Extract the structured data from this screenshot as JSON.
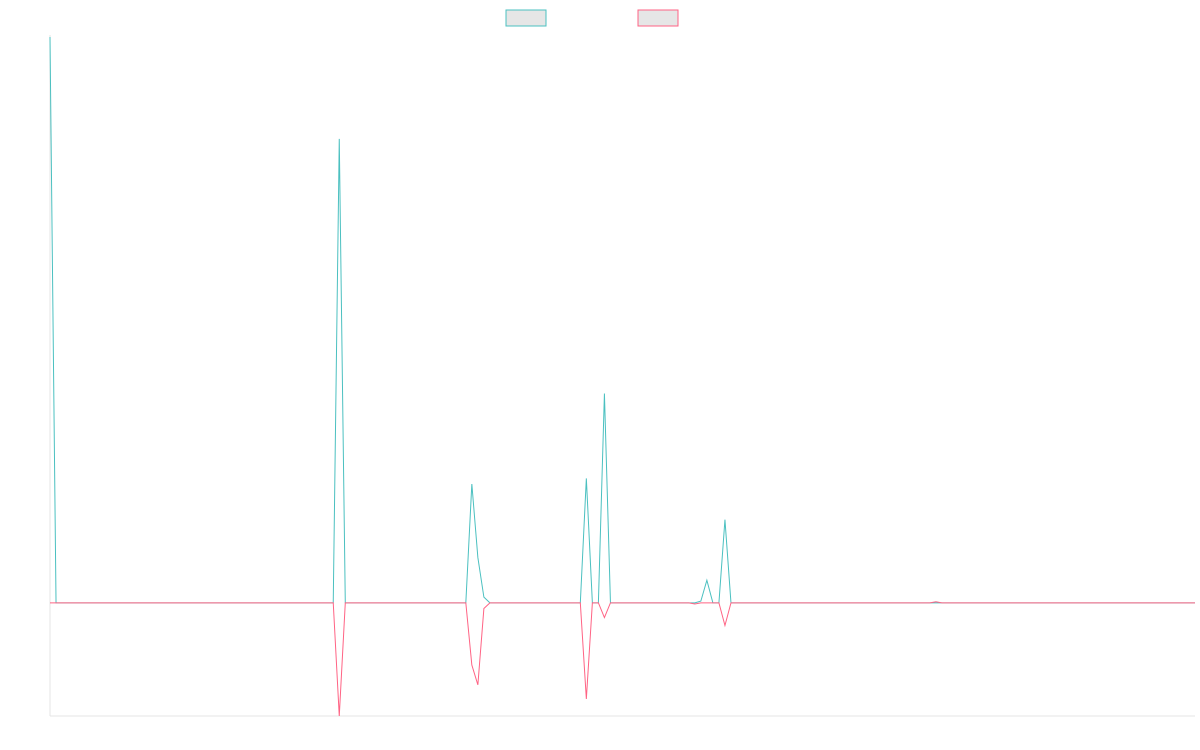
{
  "chart_data": {
    "type": "line",
    "title": "",
    "xlabel": "",
    "ylabel": "",
    "x": [
      0,
      1,
      2,
      3,
      4,
      5,
      6,
      7,
      8,
      9,
      10,
      11,
      12,
      13,
      14,
      15,
      16,
      17,
      18,
      19,
      20,
      21,
      22,
      23,
      24,
      25,
      26,
      27,
      28,
      29,
      30,
      31,
      32,
      33,
      34,
      35,
      36,
      37,
      38,
      39,
      40,
      41,
      42,
      43,
      44,
      45,
      46,
      47,
      48,
      49,
      50,
      51,
      52,
      53,
      54,
      55,
      56,
      57,
      58,
      59,
      60,
      61,
      62,
      63,
      64,
      65,
      66,
      67,
      68,
      69,
      70,
      71,
      72,
      73,
      74,
      75,
      76,
      77,
      78,
      79,
      80,
      81,
      82,
      83,
      84,
      85,
      86,
      87,
      88,
      89,
      90,
      91,
      92,
      93,
      94,
      95,
      96,
      97,
      98,
      99,
      100,
      101,
      102,
      103,
      104,
      105,
      106,
      107,
      108,
      109,
      110,
      111,
      112,
      113,
      114,
      115,
      116,
      117,
      118,
      119,
      120,
      121,
      122,
      123,
      124,
      125,
      126,
      127,
      128,
      129,
      130,
      131,
      132,
      133,
      134,
      135,
      136,
      137,
      138,
      139,
      140,
      141,
      142,
      143,
      144,
      145,
      146,
      147,
      148,
      149,
      150,
      151,
      152,
      153,
      154,
      155,
      156,
      157,
      158,
      159,
      160,
      161,
      162,
      163,
      164,
      165,
      166,
      167,
      168,
      169,
      170,
      171,
      172,
      173,
      174,
      175,
      176,
      177,
      178,
      179,
      180,
      181,
      182,
      183,
      184,
      185,
      186,
      187,
      188,
      189,
      190
    ],
    "ylim": [
      -0.2,
      1.0
    ],
    "xlim": [
      0,
      190
    ],
    "grid": false,
    "legend_position": "top-center",
    "series": [
      {
        "name": "",
        "color": "#4bc0c0",
        "fill": "#e6e6e6",
        "points": [
          [
            0,
            1.0
          ],
          [
            1,
            0
          ],
          [
            47,
            0
          ],
          [
            48,
            0.82
          ],
          [
            49,
            0
          ],
          [
            69,
            0
          ],
          [
            70,
            0.21
          ],
          [
            71,
            0.08
          ],
          [
            72,
            0.01
          ],
          [
            73,
            0
          ],
          [
            88,
            0
          ],
          [
            89,
            0.22
          ],
          [
            90,
            0
          ],
          [
            91,
            0
          ],
          [
            92,
            0.37
          ],
          [
            93,
            0
          ],
          [
            107,
            0
          ],
          [
            108,
            0.003
          ],
          [
            109,
            0.04
          ],
          [
            110,
            0
          ],
          [
            111,
            0
          ],
          [
            112,
            0.147
          ],
          [
            113,
            0
          ],
          [
            190,
            0
          ]
        ]
      },
      {
        "name": "",
        "color": "#ff6384",
        "fill": "#e6e6e6",
        "points": [
          [
            0,
            0
          ],
          [
            47,
            0
          ],
          [
            48,
            -0.2
          ],
          [
            49,
            0
          ],
          [
            69,
            0
          ],
          [
            70,
            -0.11
          ],
          [
            71,
            -0.145
          ],
          [
            72,
            -0.01
          ],
          [
            73,
            0
          ],
          [
            88,
            0
          ],
          [
            89,
            -0.17
          ],
          [
            90,
            0
          ],
          [
            91,
            0
          ],
          [
            92,
            -0.026
          ],
          [
            93,
            0
          ],
          [
            106,
            0
          ],
          [
            107,
            -0.002
          ],
          [
            108,
            0
          ],
          [
            111,
            0
          ],
          [
            112,
            -0.04
          ],
          [
            113,
            0
          ],
          [
            146,
            0
          ],
          [
            147,
            0.002
          ],
          [
            148,
            0
          ],
          [
            190,
            0
          ]
        ]
      }
    ]
  }
}
